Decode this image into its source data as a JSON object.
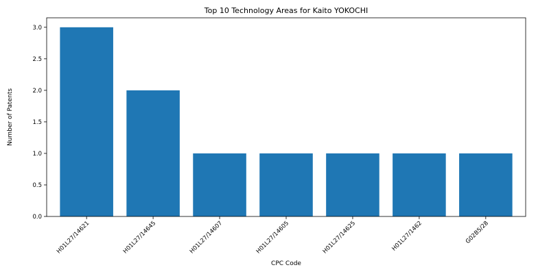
{
  "chart_data": {
    "type": "bar",
    "title": "Top 10 Technology Areas for Kaito YOKOCHI",
    "xlabel": "CPC Code",
    "ylabel": "Number of Patents",
    "categories": [
      "H01L27/14621",
      "H01L27/14645",
      "H01L27/14607",
      "H01L27/14605",
      "H01L27/14625",
      "H01L27/1462",
      "G02B5/28"
    ],
    "values": [
      3,
      2,
      1,
      1,
      1,
      1,
      1
    ],
    "ylim": [
      0,
      3.15
    ],
    "yticks": [
      "0.0",
      "0.5",
      "1.0",
      "1.5",
      "2.0",
      "2.5",
      "3.0"
    ],
    "grid": false,
    "colors": {
      "bar": "#1f77b4"
    }
  }
}
